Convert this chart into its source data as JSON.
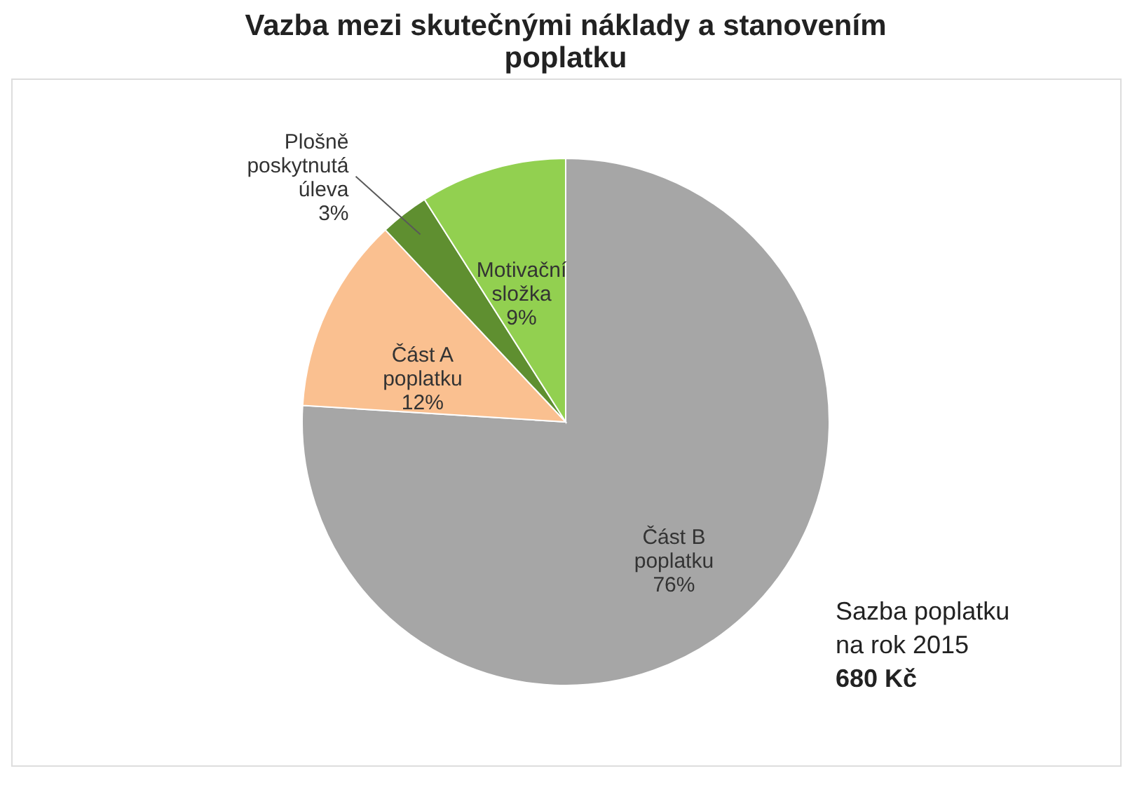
{
  "chart_data": {
    "type": "pie",
    "title": "Vazba mezi skutečnými náklady a stanovením\npoplatku",
    "categories": [
      "Část B\npoplatku",
      "Část A\npoplatku",
      "Plošně\nposkytnutá\núleva",
      "Motivační\nsložka"
    ],
    "values": [
      76,
      12,
      3,
      9
    ],
    "colors": [
      "#a6a6a6",
      "#fac090",
      "#5f8f30",
      "#92d050"
    ],
    "data_labels": true,
    "value_labels": [
      "76%",
      "12%",
      "3%",
      "9%"
    ],
    "legend": false,
    "annotations": [
      "Sazba poplatku\nna rok 2015",
      "680 Kč"
    ]
  }
}
